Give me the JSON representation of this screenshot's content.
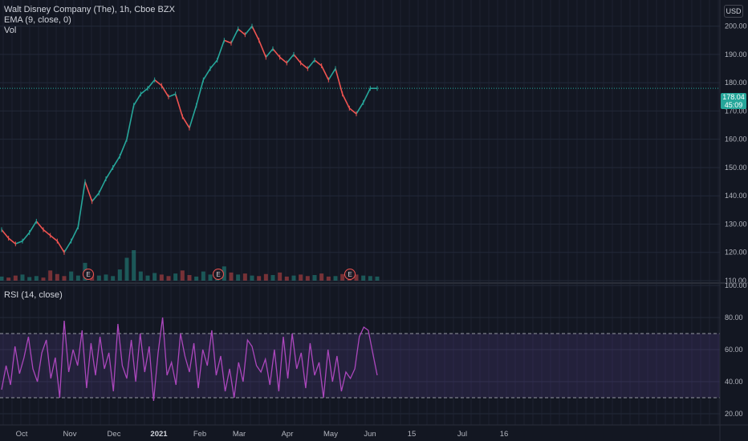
{
  "header": {
    "title": "Walt Disney Company (The), 1h, Cboe BZX",
    "ema_label": "EMA (9, close, 0)",
    "vol_label": "Vol",
    "currency": "USD"
  },
  "price_tag": {
    "value": "178.04",
    "countdown": "45:09",
    "color": "#26a69a"
  },
  "rsi_label": "RSI (14, close)",
  "colors": {
    "background": "#131722",
    "up": "#26a69a",
    "down": "#ef5350",
    "rsi_line": "#ab47bc",
    "rsi_band": "#7e57c2",
    "earnings_marker": "#ef5350"
  },
  "chart_data": [
    {
      "type": "line",
      "title": "Walt Disney Company (The), 1h, Cboe BZX",
      "ylabel": "USD",
      "ylim": [
        110,
        205
      ],
      "y_ticks": [
        110,
        120,
        130,
        140,
        150,
        160,
        170,
        180,
        190,
        200
      ],
      "x_ticks": [
        "Oct",
        "Nov",
        "Dec",
        "2021",
        "Feb",
        "Mar",
        "Apr",
        "May",
        "Jun",
        "15",
        "Jul",
        "16"
      ],
      "series": [
        {
          "values": [
            128,
            125,
            123,
            124,
            127,
            131,
            128,
            126,
            124,
            120,
            124,
            129,
            145,
            138,
            141,
            146,
            150,
            154,
            160,
            172,
            176,
            178,
            181,
            179,
            175,
            176,
            168,
            164,
            172,
            181,
            185,
            188,
            195,
            194,
            199,
            197,
            200,
            195,
            189,
            192,
            189,
            187,
            190,
            187,
            185,
            188,
            186,
            181,
            185,
            176,
            171,
            169,
            173,
            178,
            178
          ]
        }
      ],
      "volume": [
        8,
        6,
        10,
        12,
        7,
        9,
        6,
        20,
        13,
        9,
        18,
        10,
        35,
        14,
        10,
        12,
        9,
        22,
        45,
        60,
        18,
        10,
        15,
        12,
        9,
        14,
        20,
        11,
        8,
        18,
        12,
        15,
        28,
        16,
        12,
        14,
        10,
        9,
        13,
        11,
        16,
        8,
        10,
        12,
        9,
        11,
        14,
        8,
        9,
        13,
        22,
        12,
        10,
        9,
        8
      ],
      "last_price": 178.04,
      "earnings_markers": [
        "E",
        "E",
        "E"
      ]
    },
    {
      "type": "line",
      "title": "RSI (14, close)",
      "ylim": [
        14,
        100
      ],
      "y_ticks": [
        20,
        40,
        60,
        80,
        100
      ],
      "bands": [
        30,
        70
      ],
      "series": [
        {
          "values": [
            35,
            50,
            38,
            62,
            45,
            55,
            68,
            48,
            40,
            58,
            66,
            42,
            55,
            30,
            78,
            46,
            60,
            50,
            72,
            36,
            64,
            44,
            68,
            48,
            58,
            34,
            76,
            50,
            42,
            66,
            40,
            70,
            46,
            62,
            28,
            58,
            80,
            44,
            52,
            38,
            70,
            56,
            46,
            64,
            36,
            60,
            50,
            72,
            44,
            56,
            34,
            48,
            30,
            52,
            40,
            66,
            62,
            50,
            46,
            54,
            38,
            60,
            34,
            68,
            42,
            70,
            48,
            58,
            36,
            64,
            44,
            52,
            30,
            60,
            40,
            56,
            34,
            46,
            42,
            48,
            68,
            74,
            72,
            58,
            44
          ]
        }
      ]
    }
  ]
}
